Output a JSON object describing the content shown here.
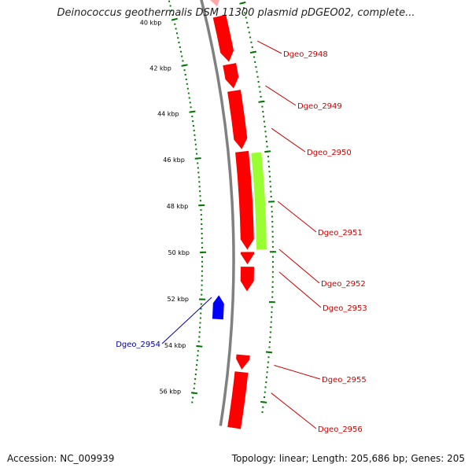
{
  "title": "Deinococcus geothermalis DSM 11300 plasmid pDGEO02, complete...",
  "footer": {
    "accession": "Accession: NC_009939",
    "summary": "Topology: linear; Length: 205,686 bp; Genes: 205"
  },
  "colors": {
    "forward_gene": "#ff0000",
    "reverse_gene": "#0000ff",
    "highlight": "#99ff33",
    "forward_label": "#cc0000",
    "reverse_label": "#000099",
    "tick_dots": "#007700",
    "backbone": "#808080"
  },
  "ticks": [
    {
      "label": "40 kbp"
    },
    {
      "label": "42 kbp"
    },
    {
      "label": "44 kbp"
    },
    {
      "label": "46 kbp"
    },
    {
      "label": "48 kbp"
    },
    {
      "label": "50 kbp"
    },
    {
      "label": "52 kbp"
    },
    {
      "label": "54 kbp"
    },
    {
      "label": "56 kbp"
    }
  ],
  "genes": [
    {
      "name": "Dgeo_2948",
      "strand": "forward"
    },
    {
      "name": "Dgeo_2949",
      "strand": "forward"
    },
    {
      "name": "Dgeo_2950",
      "strand": "forward"
    },
    {
      "name": "Dgeo_2951",
      "strand": "forward"
    },
    {
      "name": "Dgeo_2952",
      "strand": "forward"
    },
    {
      "name": "Dgeo_2953",
      "strand": "forward"
    },
    {
      "name": "Dgeo_2954",
      "strand": "reverse"
    },
    {
      "name": "Dgeo_2955",
      "strand": "forward"
    },
    {
      "name": "Dgeo_2956",
      "strand": "forward"
    }
  ]
}
